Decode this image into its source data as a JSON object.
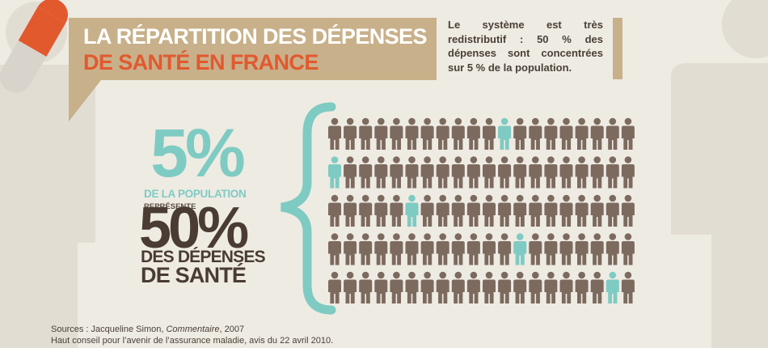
{
  "title": {
    "line1": "LA RÉPARTITION DES DÉPENSES",
    "line2": "DE SANTÉ EN FRANCE"
  },
  "callout": "Le système est très redistributif : 50 % des dépenses sont concentrées sur 5 % de la population.",
  "stat": {
    "big_percent": "5%",
    "population_label": "DE LA POPULATION",
    "represente": "REPRÉSENTE",
    "spend_percent": "50%",
    "spend_label1": "DES DÉPENSES",
    "spend_label2": "DE SANTÉ"
  },
  "people_grid": {
    "rows": 5,
    "cols": 20,
    "highlighted": [
      [
        0,
        11
      ],
      [
        1,
        0
      ],
      [
        2,
        5
      ],
      [
        3,
        12
      ],
      [
        4,
        18
      ]
    ],
    "highlight_color": "#7ecbc3",
    "base_color": "#7d6a5f"
  },
  "sources": {
    "prefix": "Sources : Jacqueline Simon, ",
    "work": "Commentaire",
    "suffix": ", 2007",
    "line2": "Haut conseil pour l’avenir de l’assurance maladie, avis du 22 avril 2010."
  },
  "colors": {
    "background": "#eeebe3",
    "accent_teal": "#7ecbc3",
    "accent_orange": "#e2592e",
    "banner_tan": "#c8b08a",
    "dark_brown": "#4a3c33"
  },
  "icons": [
    "pill-icon",
    "person-silhouette-icon"
  ]
}
